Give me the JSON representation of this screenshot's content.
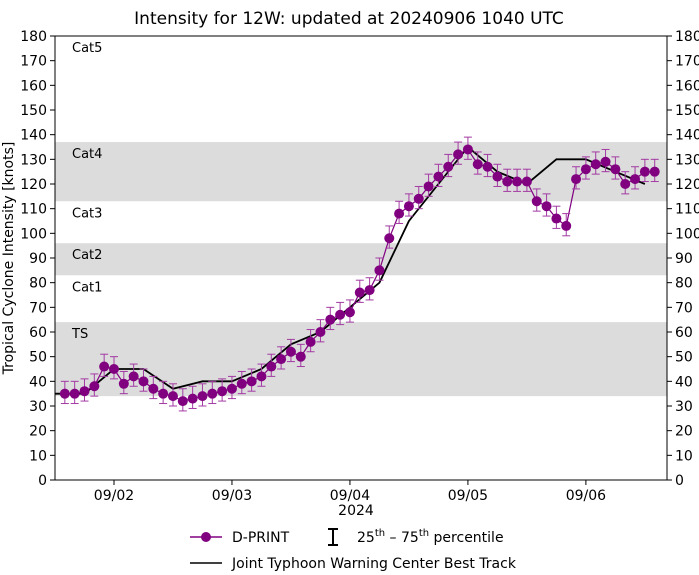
{
  "chart_data": {
    "type": "line",
    "title": "Intensity for 12W: updated at 20240906 1040 UTC",
    "ylabel": "Tropical Cyclone Intensity [knots]",
    "xlabel": "2024",
    "ylim": [
      0,
      180
    ],
    "xlim": [
      "2024-09-01T12:00",
      "2024-09-06T16:30"
    ],
    "yticks": [
      0,
      10,
      20,
      30,
      40,
      50,
      60,
      70,
      80,
      90,
      100,
      110,
      120,
      130,
      140,
      150,
      160,
      170,
      180
    ],
    "xticks": [
      {
        "t": "2024-09-02T00:00",
        "label": "09/02"
      },
      {
        "t": "2024-09-03T00:00",
        "label": "09/03"
      },
      {
        "t": "2024-09-04T00:00",
        "label": "09/04"
      },
      {
        "t": "2024-09-05T00:00",
        "label": "09/05"
      },
      {
        "t": "2024-09-06T00:00",
        "label": "09/06"
      }
    ],
    "category_bands": [
      {
        "label": "TS",
        "min": 34,
        "max": 64,
        "shaded": true
      },
      {
        "label": "Cat1",
        "min": 64,
        "max": 83,
        "shaded": false
      },
      {
        "label": "Cat2",
        "min": 83,
        "max": 96,
        "shaded": true
      },
      {
        "label": "Cat3",
        "min": 96,
        "max": 113,
        "shaded": false
      },
      {
        "label": "Cat4",
        "min": 113,
        "max": 137,
        "shaded": true
      },
      {
        "label": "Cat5",
        "min": 137,
        "max": 180,
        "shaded": false
      }
    ],
    "series": [
      {
        "name": "D-PRINT",
        "color": "#800080",
        "start": "2024-09-01T14:00",
        "step_hours": 2,
        "values": [
          35,
          35,
          36,
          38,
          46,
          45,
          39,
          42,
          40,
          37,
          35,
          34,
          32,
          33,
          34,
          35,
          36,
          37,
          39,
          40,
          42,
          46,
          49,
          52,
          50,
          56,
          60,
          65,
          67,
          68,
          76,
          77,
          85,
          98,
          108,
          111,
          114,
          119,
          123,
          127,
          132,
          134,
          128,
          127,
          123,
          121,
          121,
          121,
          113,
          111,
          106,
          103,
          122,
          126,
          128,
          129,
          126,
          120,
          122,
          125,
          125
        ],
        "p25": [
          31,
          31,
          32,
          34,
          42,
          41,
          35,
          38,
          36,
          33,
          31,
          30,
          28,
          29,
          30,
          31,
          32,
          33,
          35,
          36,
          38,
          42,
          45,
          48,
          46,
          52,
          56,
          61,
          63,
          64,
          72,
          73,
          81,
          94,
          104,
          107,
          110,
          115,
          119,
          123,
          128,
          130,
          124,
          123,
          119,
          117,
          117,
          117,
          109,
          107,
          102,
          99,
          118,
          122,
          124,
          125,
          122,
          116,
          118,
          121,
          121
        ],
        "p75": [
          40,
          40,
          41,
          43,
          51,
          50,
          44,
          47,
          45,
          42,
          40,
          39,
          37,
          38,
          39,
          40,
          41,
          42,
          44,
          45,
          47,
          51,
          54,
          57,
          55,
          61,
          65,
          70,
          72,
          73,
          81,
          82,
          90,
          103,
          113,
          116,
          119,
          124,
          128,
          132,
          137,
          139,
          133,
          132,
          128,
          126,
          126,
          126,
          118,
          116,
          111,
          108,
          127,
          131,
          133,
          134,
          131,
          125,
          127,
          130,
          130
        ]
      },
      {
        "name": "Joint Typhoon Warning Center Best Track",
        "color": "#000000",
        "points": [
          [
            "2024-09-01T12:00",
            35
          ],
          [
            "2024-09-01T18:00",
            35
          ],
          [
            "2024-09-02T00:00",
            45
          ],
          [
            "2024-09-02T06:00",
            45
          ],
          [
            "2024-09-02T12:00",
            37
          ],
          [
            "2024-09-02T18:00",
            40
          ],
          [
            "2024-09-03T00:00",
            40
          ],
          [
            "2024-09-03T06:00",
            45
          ],
          [
            "2024-09-03T12:00",
            55
          ],
          [
            "2024-09-03T18:00",
            60
          ],
          [
            "2024-09-04T00:00",
            70
          ],
          [
            "2024-09-04T06:00",
            80
          ],
          [
            "2024-09-04T12:00",
            105
          ],
          [
            "2024-09-04T18:00",
            120
          ],
          [
            "2024-09-05T00:00",
            135
          ],
          [
            "2024-09-05T06:00",
            125
          ],
          [
            "2024-09-05T12:00",
            120
          ],
          [
            "2024-09-05T18:00",
            130
          ],
          [
            "2024-09-06T00:00",
            130
          ],
          [
            "2024-09-06T06:00",
            125
          ],
          [
            "2024-09-06T12:00",
            120
          ]
        ]
      }
    ],
    "legend": {
      "placement": "bottom-center",
      "dprint": "D-PRINT",
      "pct_a": "25",
      "pct_a_sup": "th",
      "pct_dash": " – ",
      "pct_b": "75",
      "pct_b_sup": "th",
      "pct_word": " percentile",
      "best_track": "Joint Typhoon Warning Center Best Track"
    },
    "grid": false
  }
}
